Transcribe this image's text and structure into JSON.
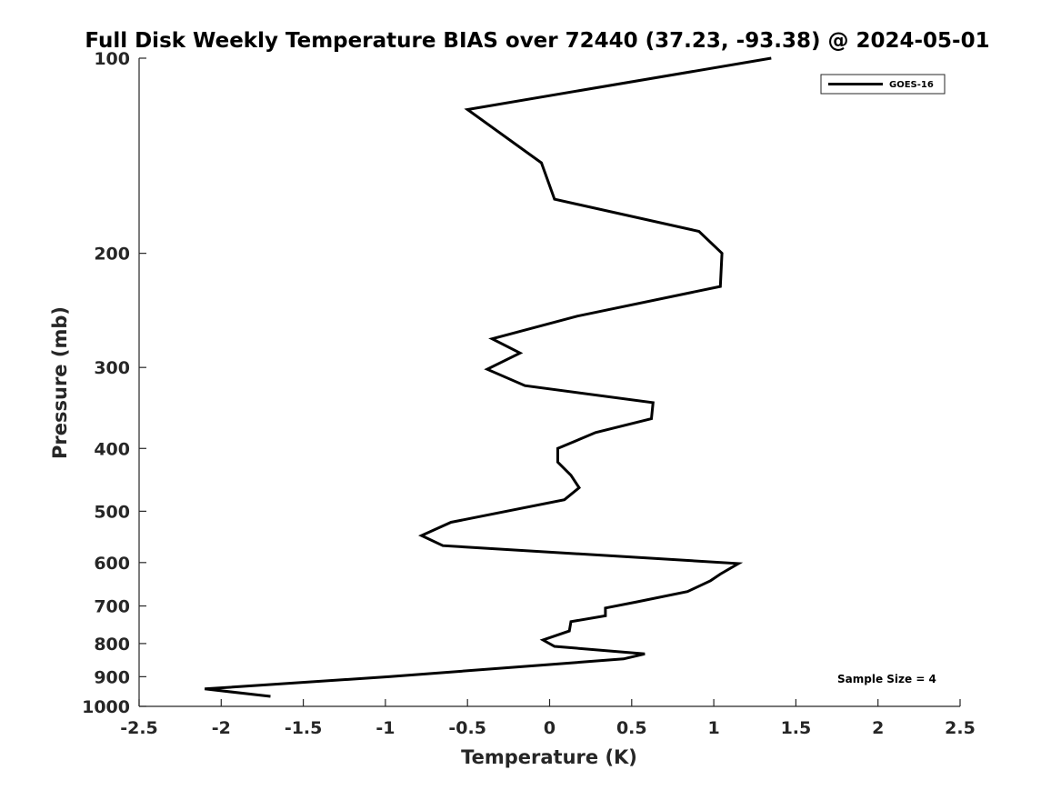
{
  "chart_data": {
    "type": "line",
    "title": "Full Disk Weekly Temperature BIAS over 72440 (37.23, -93.38) @ 2024-05-01",
    "xlabel": "Temperature (K)",
    "ylabel": "Pressure (mb)",
    "xlim": [
      -2.5,
      2.5
    ],
    "ylim": [
      1000,
      100
    ],
    "yscale": "log",
    "x_ticks": [
      -2.5,
      -2,
      -1.5,
      -1,
      -0.5,
      0,
      0.5,
      1,
      1.5,
      2,
      2.5
    ],
    "x_tick_labels": [
      "-2.5",
      "-2",
      "-1.5",
      "-1",
      "-0.5",
      "0",
      "0.5",
      "1",
      "1.5",
      "2",
      "2.5"
    ],
    "y_ticks": [
      100,
      200,
      300,
      400,
      500,
      600,
      700,
      800,
      900,
      1000
    ],
    "y_tick_labels": [
      "100",
      "200",
      "300",
      "400",
      "500",
      "600",
      "700",
      "800",
      "900",
      "1000"
    ],
    "grid": false,
    "legend": {
      "position": "top-right",
      "entries": [
        "GOES-16"
      ]
    },
    "annotation": "Sample Size = 4",
    "series": [
      {
        "name": "GOES-16",
        "color": "#000000",
        "points": [
          {
            "x": 1.35,
            "p": 100
          },
          {
            "x": -0.5,
            "p": 120
          },
          {
            "x": -0.05,
            "p": 145
          },
          {
            "x": 0.03,
            "p": 165
          },
          {
            "x": 0.91,
            "p": 185
          },
          {
            "x": 1.05,
            "p": 200
          },
          {
            "x": 1.04,
            "p": 225
          },
          {
            "x": 0.17,
            "p": 250
          },
          {
            "x": -0.35,
            "p": 271
          },
          {
            "x": -0.18,
            "p": 285
          },
          {
            "x": -0.38,
            "p": 302
          },
          {
            "x": -0.15,
            "p": 320
          },
          {
            "x": 0.63,
            "p": 340
          },
          {
            "x": 0.62,
            "p": 360
          },
          {
            "x": 0.28,
            "p": 378
          },
          {
            "x": 0.05,
            "p": 400
          },
          {
            "x": 0.05,
            "p": 420
          },
          {
            "x": 0.13,
            "p": 440
          },
          {
            "x": 0.18,
            "p": 460
          },
          {
            "x": 0.09,
            "p": 480
          },
          {
            "x": -0.6,
            "p": 520
          },
          {
            "x": -0.78,
            "p": 545
          },
          {
            "x": -0.65,
            "p": 565
          },
          {
            "x": 1.15,
            "p": 602
          },
          {
            "x": 1.04,
            "p": 625
          },
          {
            "x": 0.98,
            "p": 640
          },
          {
            "x": 0.84,
            "p": 665
          },
          {
            "x": 0.53,
            "p": 690
          },
          {
            "x": 0.34,
            "p": 705
          },
          {
            "x": 0.34,
            "p": 725
          },
          {
            "x": 0.13,
            "p": 740
          },
          {
            "x": 0.12,
            "p": 765
          },
          {
            "x": -0.04,
            "p": 790
          },
          {
            "x": 0.03,
            "p": 808
          },
          {
            "x": 0.58,
            "p": 830
          },
          {
            "x": 0.45,
            "p": 845
          },
          {
            "x": 0.0,
            "p": 862
          },
          {
            "x": -0.98,
            "p": 900
          },
          {
            "x": -2.1,
            "p": 940
          },
          {
            "x": -1.7,
            "p": 965
          }
        ]
      }
    ]
  }
}
